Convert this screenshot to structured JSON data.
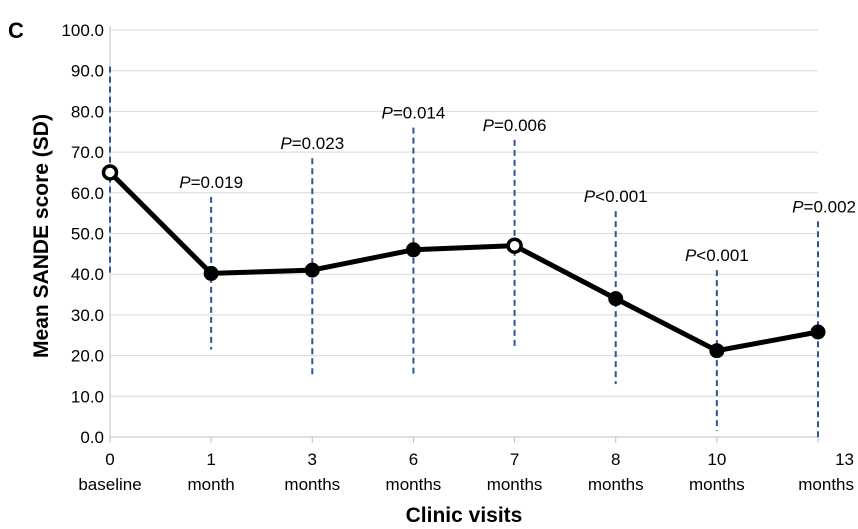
{
  "chart_data": {
    "type": "line",
    "panel_label": "C",
    "xlabel": "Clinic visits",
    "ylabel": "Mean SANDE score (SD)",
    "ylim": [
      0,
      100
    ],
    "yticks": [
      "0.0",
      "10.0",
      "20.0",
      "30.0",
      "40.0",
      "50.0",
      "60.0",
      "70.0",
      "80.0",
      "90.0",
      "100.0"
    ],
    "grid": true,
    "categories": [
      {
        "number": "0",
        "unit": "baseline"
      },
      {
        "number": "1",
        "unit": "month"
      },
      {
        "number": "3",
        "unit": "months"
      },
      {
        "number": "6",
        "unit": "months"
      },
      {
        "number": "7",
        "unit": "months"
      },
      {
        "number": "8",
        "unit": "months"
      },
      {
        "number": "10",
        "unit": "months"
      },
      {
        "number": "13",
        "unit": "months"
      }
    ],
    "series": [
      {
        "values": [
          65,
          40.2,
          41,
          46,
          47,
          34,
          21.2,
          25.8
        ],
        "sd_low": [
          39.5,
          21.5,
          14.5,
          15.5,
          21.5,
          13,
          1.5,
          0
        ],
        "sd_high": [
          91,
          59,
          68.5,
          76,
          73,
          55.5,
          41,
          53
        ],
        "marker_style": [
          "open",
          "filled",
          "filled",
          "filled",
          "open",
          "filled",
          "filled",
          "filled"
        ],
        "color": "#000000",
        "error_color": "#2f5597"
      }
    ],
    "p_values": [
      null,
      {
        "prefix": "P",
        "rest": "=0.019"
      },
      {
        "prefix": "P",
        "rest": "=0.023"
      },
      {
        "prefix": "P",
        "rest": "=0.014"
      },
      {
        "prefix": "P",
        "rest": "=0.006"
      },
      {
        "prefix": "P",
        "rest": "<0.001"
      },
      {
        "prefix": "P",
        "rest": "<0.001"
      },
      {
        "prefix": "P",
        "rest": "=0.002"
      }
    ],
    "colors": {
      "grid": "#d9d9d9",
      "axis": "#bfbfbf",
      "line": "#000000",
      "error": "#2f5597"
    }
  }
}
